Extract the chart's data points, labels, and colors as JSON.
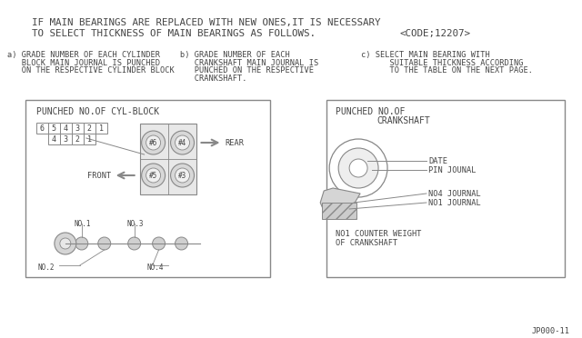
{
  "bg_color": "#ffffff",
  "line_color": "#888888",
  "text_color": "#444444",
  "title_line1": "IF MAIN BEARINGS ARE REPLACED WITH NEW ONES,IT IS NECESSARY",
  "title_line2": "TO SELECT THICKNESS OF MAIN BEARINGS AS FOLLOWS.",
  "code_text": "<CODE;12207>",
  "label_a_lines": [
    "a) GRADE NUMBER OF EACH CYLINDER",
    "   BLOCK MAIN JOURNAL IS PUNCHED",
    "   ON THE RESPECTIVE CYLINDER BLOCK"
  ],
  "label_b_lines": [
    "b) GRADE NUMBER OF EACH",
    "   CRANKSHAFT MAIN JOURNAL IS",
    "   PUNCHED ON THE RESPECTIVE",
    "   CRANKSHAFT."
  ],
  "label_c_lines": [
    "c) SELECT MAIN BEARING WITH",
    "      SUITABLE THICKNESS ACCORDING",
    "      TO THE TABLE ON THE NEXT PAGE."
  ],
  "box1_title": "PUNCHED NO.OF CYL-BLOCK",
  "box2_title_line1": "PUNCHED NO.OF",
  "box2_title_line2": "CRANKSHAFT",
  "footnote": "JP000-11"
}
